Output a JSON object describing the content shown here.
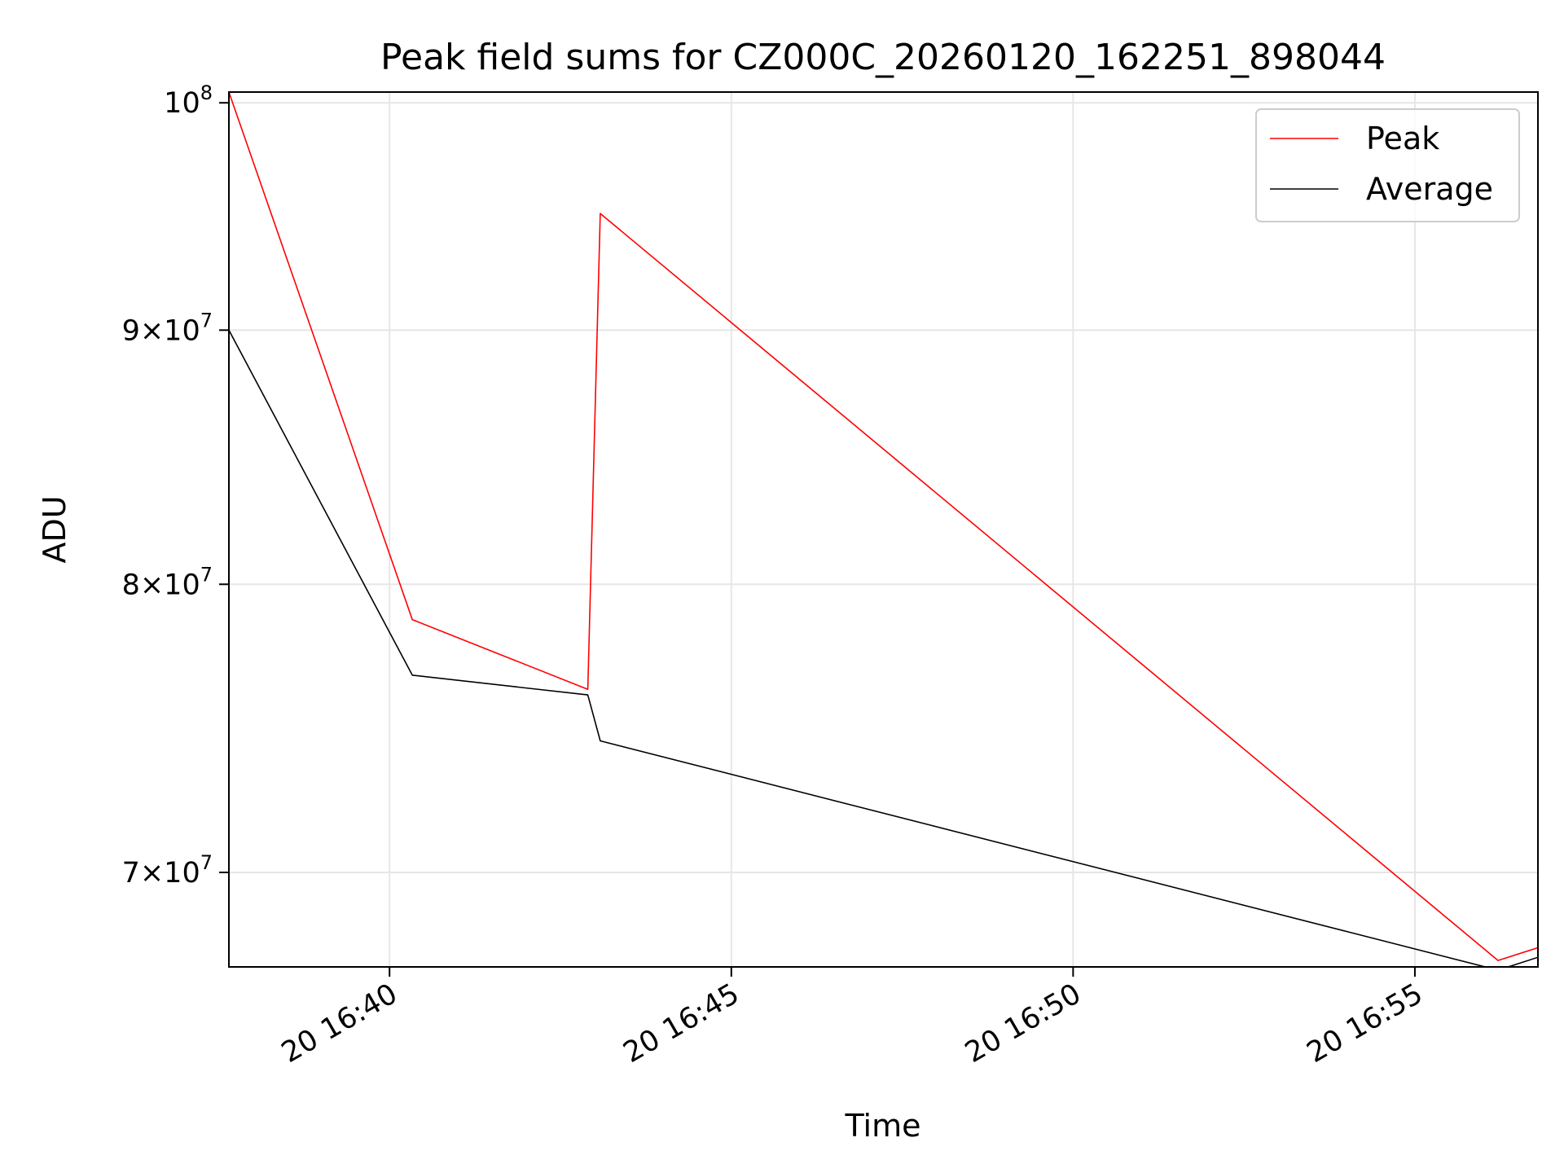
{
  "chart_data": {
    "type": "line",
    "title": "Peak field sums for CZ000C_20260120_162251_898044",
    "xlabel": "Time",
    "ylabel": "ADU",
    "y_scale": "log",
    "ylim": [
      67000000,
      100500000
    ],
    "xlim": [
      "2026-01-20 16:37:39",
      "2026-01-20 16:56:48"
    ],
    "x_ticks": [
      {
        "value": "2026-01-20 16:40:00",
        "label": "20 16:40"
      },
      {
        "value": "2026-01-20 16:45:00",
        "label": "20 16:45"
      },
      {
        "value": "2026-01-20 16:50:00",
        "label": "20 16:50"
      },
      {
        "value": "2026-01-20 16:55:00",
        "label": "20 16:55"
      }
    ],
    "y_ticks": [
      {
        "value": 100000000,
        "base": "10",
        "exp": "8"
      },
      {
        "value": 90000000,
        "mant": "9",
        "base": "10",
        "exp": "7"
      },
      {
        "value": 80000000,
        "mant": "8",
        "base": "10",
        "exp": "7"
      },
      {
        "value": 70000000,
        "mant": "7",
        "base": "10",
        "exp": "7"
      }
    ],
    "grid": true,
    "legend_position": "top-right",
    "series": [
      {
        "name": "Peak",
        "color": "#ff0000",
        "points": [
          {
            "x": "2026-01-20 16:37:39",
            "y": 100500000
          },
          {
            "x": "2026-01-20 16:40:20",
            "y": 78700000
          },
          {
            "x": "2026-01-20 16:42:54",
            "y": 76200000
          },
          {
            "x": "2026-01-20 16:43:05",
            "y": 95000000
          },
          {
            "x": "2026-01-20 16:56:13",
            "y": 67200000
          },
          {
            "x": "2026-01-20 16:56:48",
            "y": 67600000
          }
        ]
      },
      {
        "name": "Average",
        "color": "#000000",
        "points": [
          {
            "x": "2026-01-20 16:37:39",
            "y": 90000000
          },
          {
            "x": "2026-01-20 16:40:20",
            "y": 76700000
          },
          {
            "x": "2026-01-20 16:42:54",
            "y": 76000000
          },
          {
            "x": "2026-01-20 16:43:05",
            "y": 74400000
          },
          {
            "x": "2026-01-20 16:56:13",
            "y": 66900000
          },
          {
            "x": "2026-01-20 16:56:48",
            "y": 67300000
          }
        ]
      }
    ]
  }
}
